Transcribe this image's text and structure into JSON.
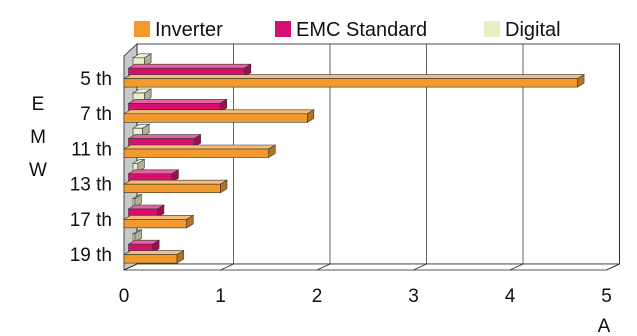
{
  "chart_data": {
    "type": "bar",
    "orientation": "horizontal",
    "style": "3d",
    "categories": [
      "5 th",
      "7 th",
      "11 th",
      "13 th",
      "17 th",
      "19 th"
    ],
    "series": [
      {
        "name": "Inverter",
        "color": "#f39a2f",
        "values": [
          4.7,
          1.9,
          1.5,
          1.0,
          0.65,
          0.55
        ]
      },
      {
        "name": "EMC Standard",
        "color": "#d6106f",
        "values": [
          1.2,
          0.95,
          0.68,
          0.45,
          0.3,
          0.25
        ]
      },
      {
        "name": "Digital",
        "color": "#e6efc6",
        "values": [
          0.12,
          0.12,
          0.1,
          0.05,
          0.02,
          0.02
        ]
      }
    ],
    "xlim": [
      0,
      5
    ],
    "xticks": [
      "0",
      "1",
      "2",
      "3",
      "4",
      "5"
    ],
    "xlabel": "A",
    "ylabel": "EMW",
    "ylabel_letters": [
      "E",
      "M",
      "W"
    ],
    "grid": true,
    "legend_position": "top"
  }
}
